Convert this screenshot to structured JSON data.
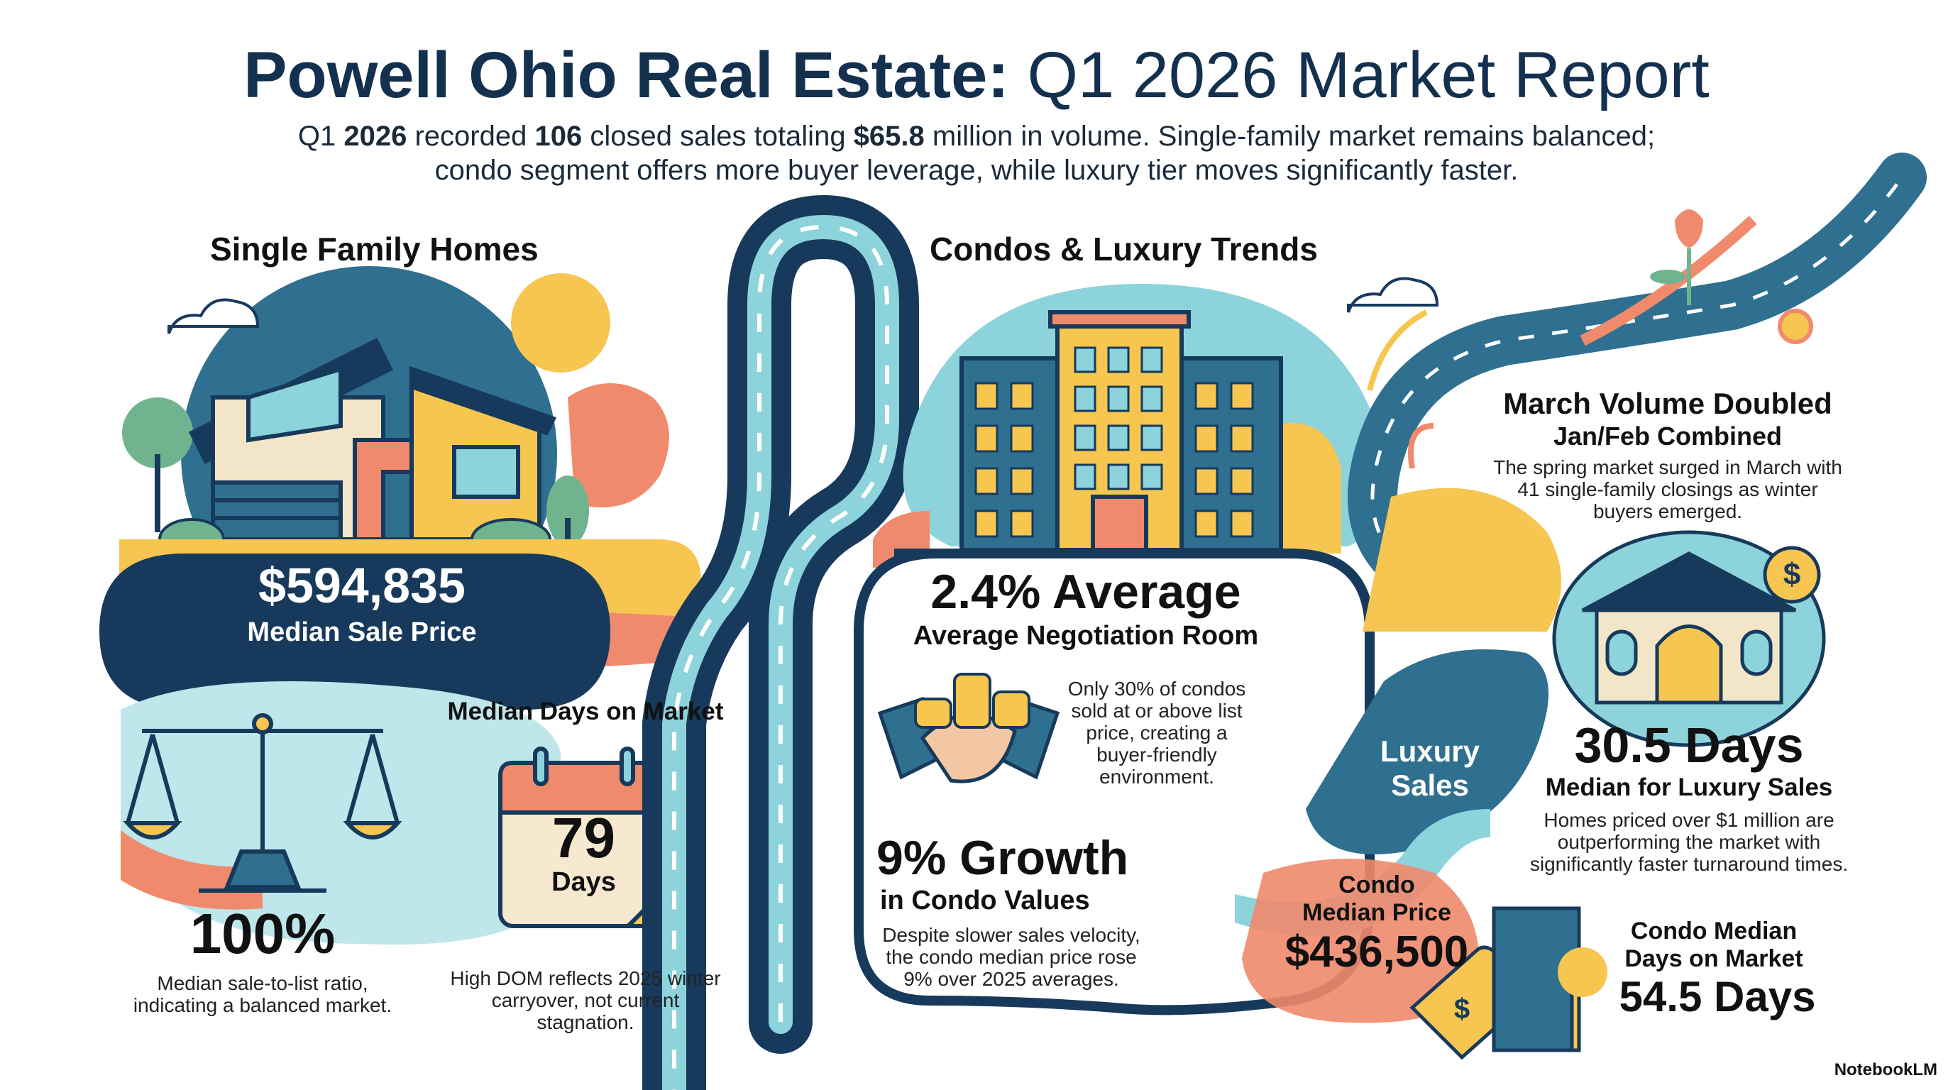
{
  "header": {
    "title_bold": "Powell Ohio Real Estate:",
    "title_regular": "Q1 2026 Market Report",
    "summary": {
      "p1": "Q1 ",
      "b1": "2026",
      "p2": " recorded ",
      "b2": "106",
      "p3": " closed sales totaling ",
      "b3": "$65.8",
      "p4": " million in volume. Single-family market remains balanced;",
      "line2": "condo segment offers more buyer leverage, while luxury tier moves significantly faster."
    }
  },
  "single_family": {
    "heading": "Single Family Homes",
    "median_price": "$594,835",
    "median_price_label": "Median Sale Price",
    "ratio_value": "100%",
    "ratio_text_1": "Median sale-to-list ratio,",
    "ratio_text_2": "indicating a balanced market.",
    "dom_heading": "Median Days on Market",
    "dom_value": "79",
    "dom_unit": "Days",
    "dom_text_1": "High DOM reflects 2025 winter",
    "dom_text_2": "carryover, not current",
    "dom_text_3": "stagnation."
  },
  "condos": {
    "heading": "Condos & Luxury Trends",
    "negotiation_value": "2.4% Average",
    "negotiation_label": "Average Negotiation Room",
    "negotiation_text_1": "Only 30% of condos",
    "negotiation_text_2": "sold at or above list",
    "negotiation_text_3": "price, creating a",
    "negotiation_text_4": "buyer-friendly",
    "negotiation_text_5": "environment.",
    "growth_value": "9% Growth",
    "growth_label": "in Condo Values",
    "growth_text_1": "Despite slower sales velocity,",
    "growth_text_2": "the condo median price rose",
    "growth_text_3": "9% over 2025 averages."
  },
  "march": {
    "heading_1": "March Volume Doubled",
    "heading_2": "Jan/Feb Combined",
    "text_1": "The spring market surged in March with",
    "text_2": "41 single-family closings as winter",
    "text_3": "buyers emerged."
  },
  "luxury": {
    "badge_1": "Luxury",
    "badge_2": "Sales",
    "value": "30.5 Days",
    "label": "Median for Luxury Sales",
    "text_1": "Homes priced over $1 million are",
    "text_2": "outperforming the market with",
    "text_3": "significantly faster turnaround times."
  },
  "condo_price": {
    "label_1": "Condo",
    "label_2": "Median Price",
    "value": "$436,500",
    "tag_symbol": "$"
  },
  "condo_dom": {
    "label_1": "Condo Median",
    "label_2": "Days on Market",
    "value": "54.5 Days"
  },
  "luxury_icon_symbol": "$",
  "footer": {
    "brand": "NotebookLM"
  },
  "colors": {
    "navy": "#173a5c",
    "teal": "#2f6f8f",
    "aqua": "#8dd3db",
    "yellow": "#f6c650",
    "coral": "#f08a6c",
    "green": "#6fb48f"
  }
}
